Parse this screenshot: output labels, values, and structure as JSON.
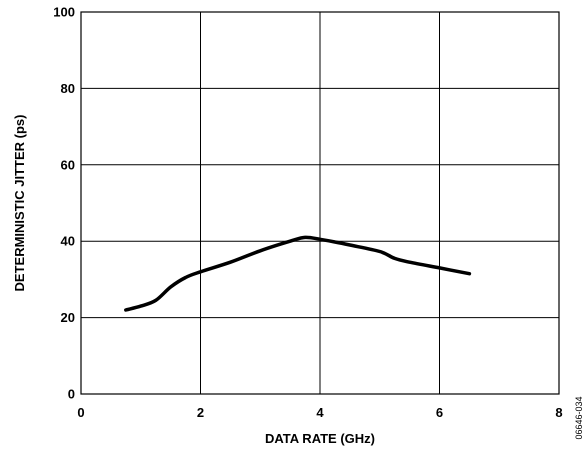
{
  "chart_data": {
    "type": "line",
    "title": "",
    "xlabel": "DATA RATE (GHz)",
    "ylabel": "DETERMINISTIC JITTER (ps)",
    "xlim": [
      0,
      8
    ],
    "ylim": [
      0,
      100
    ],
    "xticks": [
      "0",
      "2",
      "4",
      "6",
      "8"
    ],
    "yticks": [
      "0",
      "20",
      "40",
      "60",
      "80",
      "100"
    ],
    "grid": true,
    "legend": "none",
    "series": [
      {
        "color": "#000000",
        "x": [
          0.75,
          1.0,
          1.25,
          1.5,
          1.75,
          2.0,
          2.5,
          3.0,
          3.5,
          3.75,
          4.0,
          4.25,
          4.5,
          5.0,
          5.25,
          5.5,
          6.0,
          6.5
        ],
        "y": [
          22,
          23,
          24.5,
          28,
          30.5,
          32,
          34.5,
          37.5,
          40,
          41,
          40.5,
          39.8,
          39,
          37.3,
          35.5,
          34.5,
          33,
          31.5
        ]
      }
    ]
  },
  "figure_id": "06646-034"
}
